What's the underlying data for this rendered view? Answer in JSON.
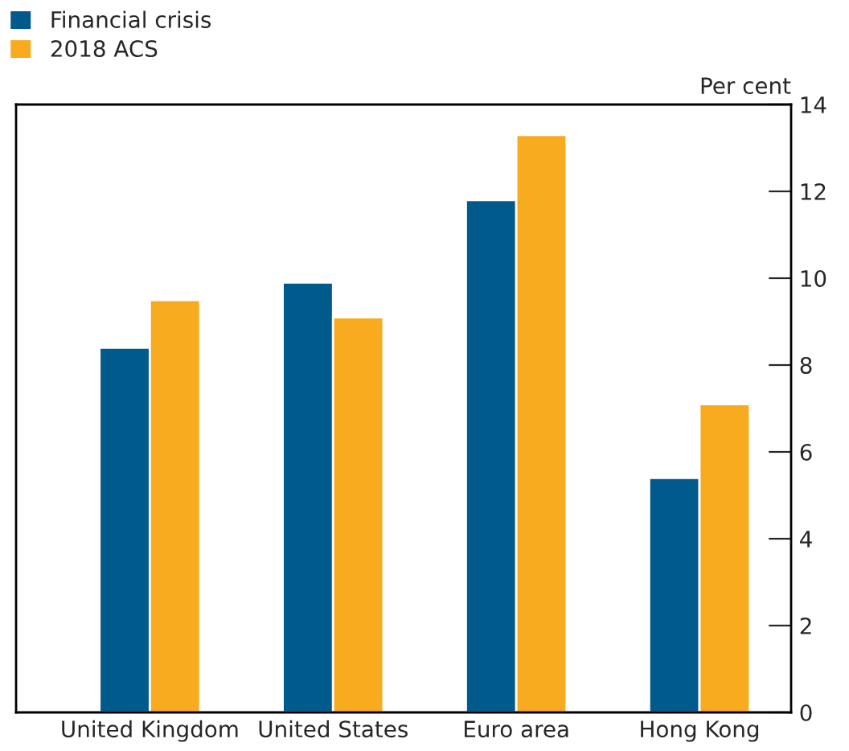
{
  "chart_data": {
    "type": "bar",
    "ylabel": "Per cent",
    "categories": [
      "United Kingdom",
      "United States",
      "Euro area",
      "Hong Kong"
    ],
    "series": [
      {
        "name": "Financial crisis",
        "color": "#005a8c",
        "values": [
          8.4,
          9.9,
          11.8,
          5.4
        ]
      },
      {
        "name": "2018 ACS",
        "color": "#f9ab1f",
        "values": [
          9.5,
          9.1,
          13.3,
          7.1
        ]
      }
    ],
    "ylim": [
      0,
      14
    ],
    "yticks": [
      0,
      2,
      4,
      6,
      8,
      10,
      12,
      14
    ],
    "grid": false,
    "legend": "top left"
  }
}
